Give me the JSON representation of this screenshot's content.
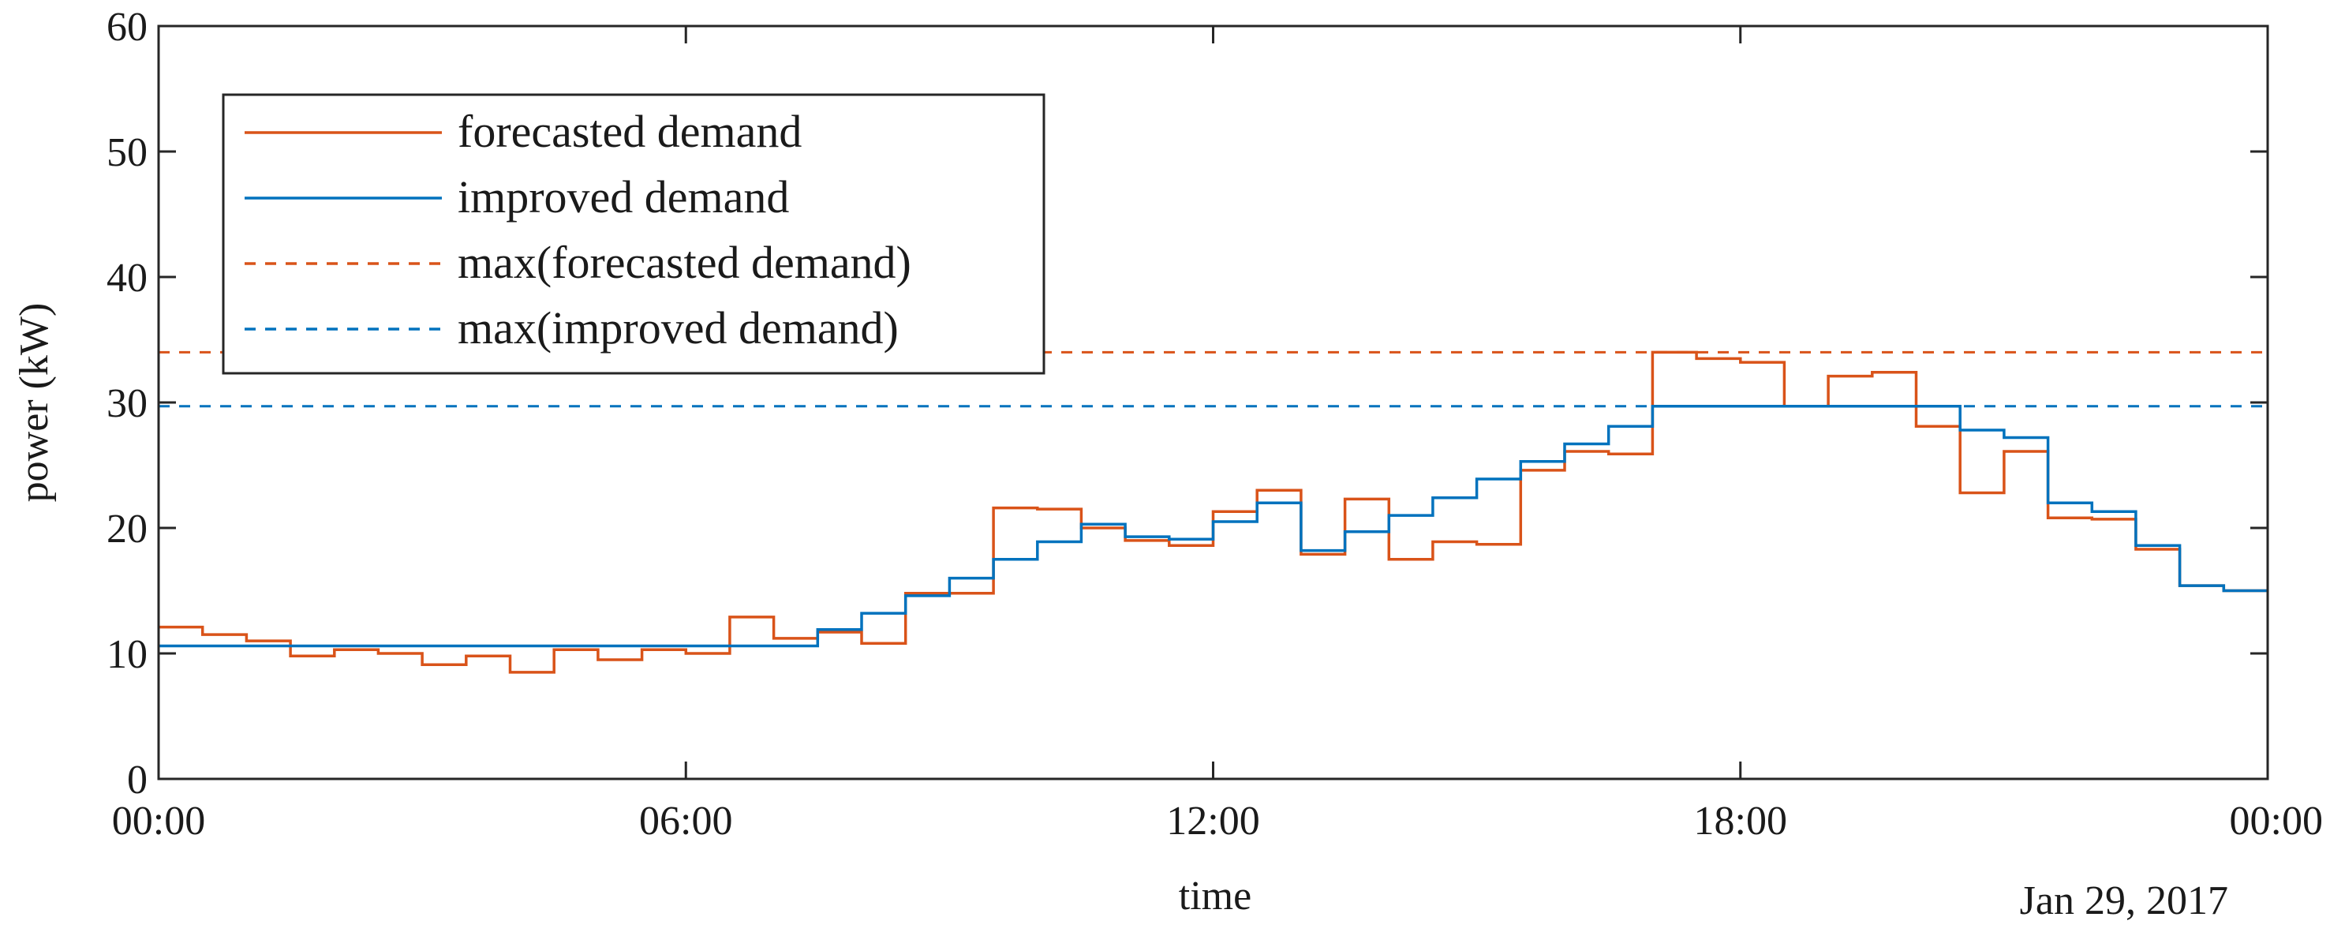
{
  "chart_data": {
    "type": "line",
    "xlabel": "time",
    "ylabel": "power (kW)",
    "date_label": "Jan 29, 2017",
    "ylim": [
      0,
      60
    ],
    "xlim": [
      "2017-01-29T00:00",
      "2017-01-30T00:00"
    ],
    "yticks": [
      0,
      10,
      20,
      30,
      40,
      50,
      60
    ],
    "xticks": [
      {
        "time": "2017-01-29T00:00",
        "label": "00:00"
      },
      {
        "time": "2017-01-29T06:00",
        "label": "06:00"
      },
      {
        "time": "2017-01-29T12:00",
        "label": "12:00"
      },
      {
        "time": "2017-01-29T18:00",
        "label": "18:00"
      },
      {
        "time": "2017-01-30T00:00",
        "label": "00:00"
      }
    ],
    "grid": false,
    "legend_position": "top-left",
    "step_interval_minutes": 30,
    "series": [
      {
        "name": "forecasted demand",
        "color": "#d95319",
        "style": "solid",
        "step": true,
        "values": [
          12.1,
          11.5,
          11.0,
          9.8,
          10.3,
          10.0,
          9.1,
          9.8,
          8.5,
          10.3,
          9.5,
          10.3,
          10.0,
          12.9,
          11.2,
          11.7,
          10.8,
          14.8,
          14.8,
          21.6,
          21.5,
          20.0,
          19.0,
          18.6,
          21.3,
          23.0,
          17.9,
          22.3,
          17.5,
          18.9,
          18.7,
          24.6,
          26.1,
          25.9,
          34.0,
          33.5,
          33.2,
          29.7,
          32.1,
          32.4,
          28.1,
          22.8,
          26.1,
          20.8,
          20.7,
          18.3,
          15.4,
          15.0
        ]
      },
      {
        "name": "improved demand",
        "color": "#0072bd",
        "style": "solid",
        "step": true,
        "values": [
          10.6,
          10.6,
          10.6,
          10.6,
          10.6,
          10.6,
          10.6,
          10.6,
          10.6,
          10.6,
          10.6,
          10.6,
          10.6,
          10.6,
          10.6,
          11.9,
          13.2,
          14.6,
          16.0,
          17.5,
          18.9,
          20.3,
          19.3,
          19.1,
          20.5,
          22.0,
          18.2,
          19.7,
          21.0,
          22.4,
          23.9,
          25.3,
          26.7,
          28.1,
          29.7,
          29.7,
          29.7,
          29.7,
          29.7,
          29.7,
          29.7,
          27.8,
          27.2,
          22.0,
          21.3,
          18.6,
          15.4,
          15.0
        ]
      },
      {
        "name": "max(forecasted demand)",
        "color": "#d95319",
        "style": "dashed",
        "constant": 34.0
      },
      {
        "name": "max(improved demand)",
        "color": "#0072bd",
        "style": "dashed",
        "constant": 29.7
      }
    ]
  }
}
